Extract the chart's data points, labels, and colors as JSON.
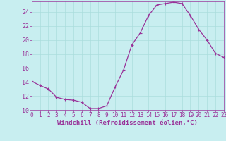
{
  "x": [
    0,
    1,
    2,
    3,
    4,
    5,
    6,
    7,
    8,
    9,
    10,
    11,
    12,
    13,
    14,
    15,
    16,
    17,
    18,
    19,
    20,
    21,
    22,
    23
  ],
  "y": [
    14.1,
    13.5,
    13.0,
    11.8,
    11.5,
    11.4,
    11.1,
    10.2,
    10.2,
    10.6,
    13.3,
    15.7,
    19.3,
    21.0,
    23.5,
    25.0,
    25.2,
    25.4,
    25.2,
    23.5,
    21.5,
    20.0,
    18.1,
    17.5
  ],
  "line_color": "#993399",
  "marker": "+",
  "marker_size": 3,
  "marker_lw": 0.8,
  "bg_color": "#c8eef0",
  "grid_color": "#aadddd",
  "xlabel": "Windchill (Refroidissement éolien,°C)",
  "xlabel_color": "#993399",
  "tick_color": "#993399",
  "spine_color": "#993399",
  "ylim": [
    10,
    25.5
  ],
  "xlim": [
    0,
    23
  ],
  "yticks": [
    10,
    12,
    14,
    16,
    18,
    20,
    22,
    24
  ],
  "xticks": [
    0,
    1,
    2,
    3,
    4,
    5,
    6,
    7,
    8,
    9,
    10,
    11,
    12,
    13,
    14,
    15,
    16,
    17,
    18,
    19,
    20,
    21,
    22,
    23
  ],
  "line_width": 0.9,
  "tick_fontsize": 5.5,
  "xlabel_fontsize": 6.5,
  "ytick_fontsize": 6
}
